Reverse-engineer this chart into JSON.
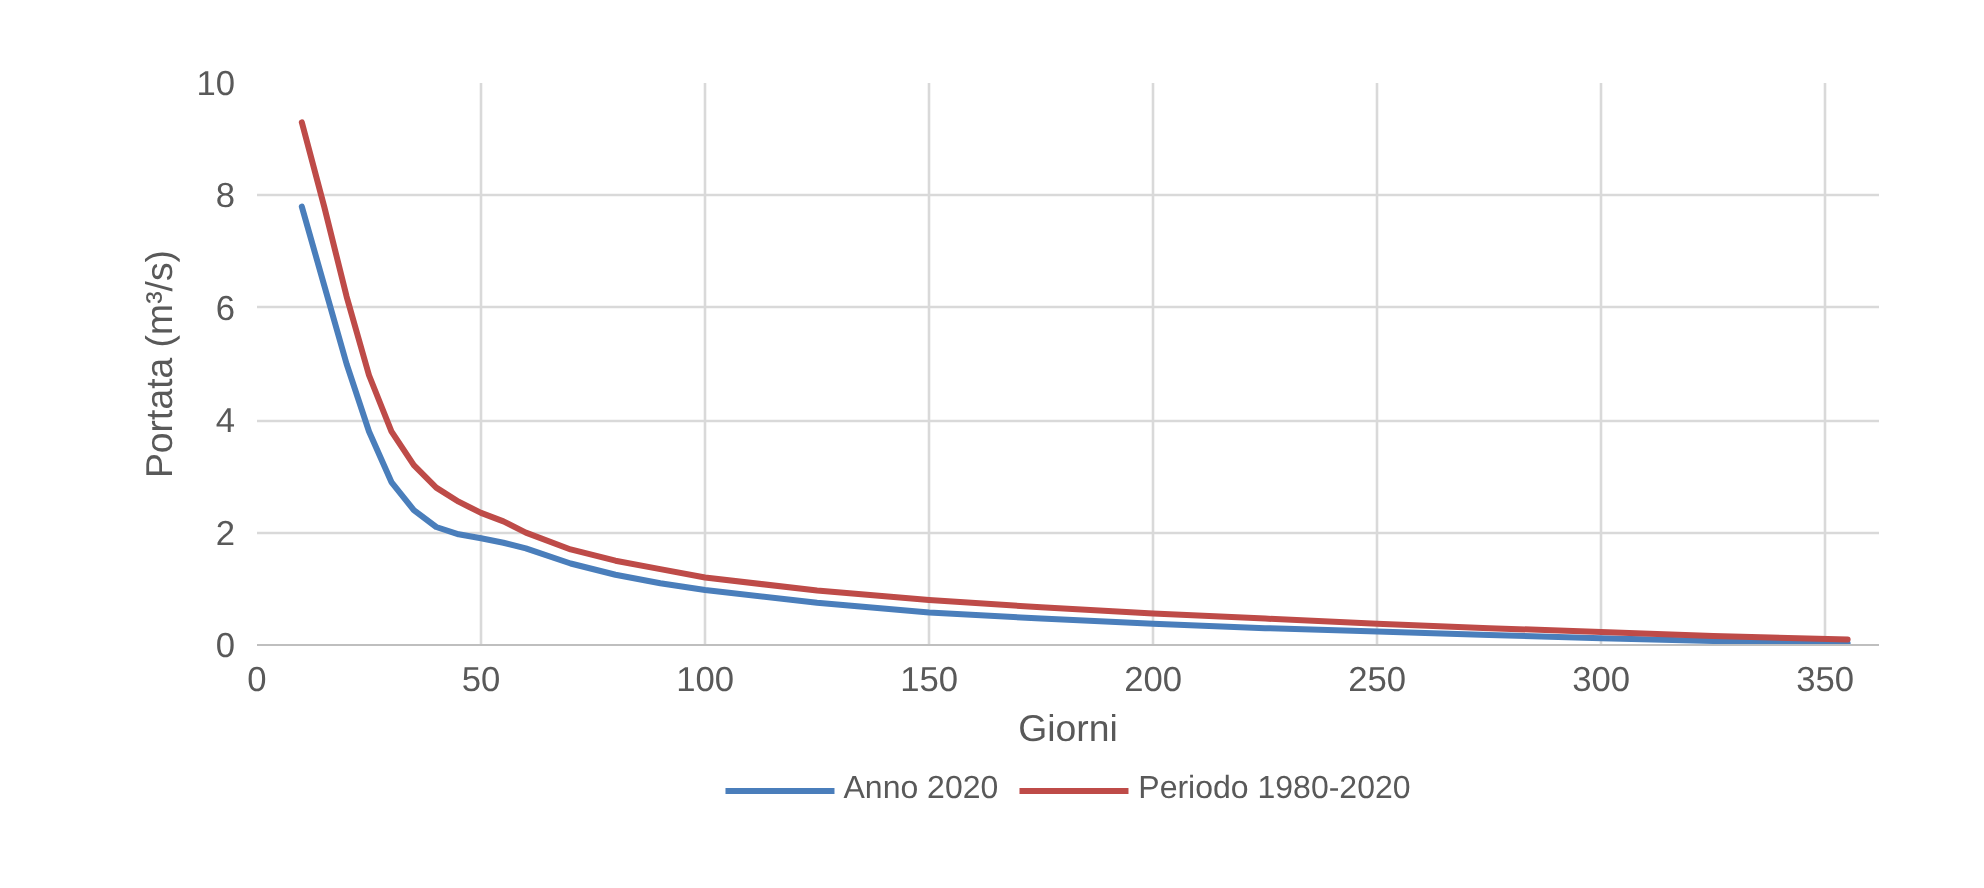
{
  "chart_data": {
    "type": "line",
    "xlabel": "Giorni",
    "ylabel": "Portata (m³/s)",
    "x": [
      10,
      15,
      20,
      25,
      30,
      35,
      40,
      45,
      50,
      55,
      60,
      70,
      80,
      90,
      100,
      125,
      150,
      175,
      200,
      225,
      250,
      275,
      300,
      325,
      355
    ],
    "series": [
      {
        "name": "Anno 2020",
        "color": "#4a7ebb",
        "values": [
          7.8,
          6.4,
          5.0,
          3.8,
          2.9,
          2.4,
          2.1,
          1.97,
          1.9,
          1.82,
          1.72,
          1.45,
          1.25,
          1.1,
          0.98,
          0.75,
          0.58,
          0.47,
          0.38,
          0.3,
          0.24,
          0.18,
          0.12,
          0.07,
          0.03
        ]
      },
      {
        "name": "Periodo 1980-2020",
        "color": "#be4b48",
        "values": [
          9.3,
          7.8,
          6.2,
          4.8,
          3.8,
          3.2,
          2.8,
          2.55,
          2.35,
          2.2,
          2.0,
          1.7,
          1.5,
          1.35,
          1.2,
          0.97,
          0.8,
          0.67,
          0.56,
          0.47,
          0.38,
          0.3,
          0.23,
          0.16,
          0.1
        ]
      }
    ],
    "xlim": [
      0,
      362
    ],
    "xticks": [
      0,
      50,
      100,
      150,
      200,
      250,
      300,
      350
    ],
    "ylim": [
      0,
      10
    ],
    "yticks": [
      0,
      2,
      4,
      6,
      8,
      10
    ],
    "grid": true,
    "legend": "bottom",
    "line_style": "solid"
  }
}
